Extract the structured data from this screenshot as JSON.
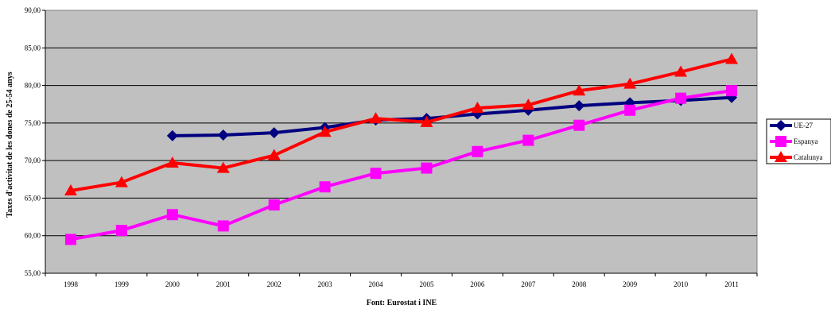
{
  "chart_data": {
    "type": "line",
    "title": "",
    "xlabel": "Font: Eurostat i INE",
    "ylabel": "Taxes d'activitat de les dones de 25-54 anys",
    "categories": [
      "1998",
      "1999",
      "2000",
      "2001",
      "2002",
      "2003",
      "2004",
      "2005",
      "2006",
      "2007",
      "2008",
      "2009",
      "2010",
      "2011"
    ],
    "ylim": [
      55,
      90
    ],
    "yticks": [
      "55,00",
      "60,00",
      "65,00",
      "70,00",
      "75,00",
      "80,00",
      "85,00",
      "90,00"
    ],
    "grid": true,
    "legend": "right",
    "background": "#c0c0c0",
    "series": [
      {
        "name": "UE-27",
        "color": "#000080",
        "marker": "diamond",
        "values": [
          null,
          null,
          73.3,
          73.4,
          73.7,
          74.4,
          75.4,
          75.6,
          76.2,
          76.7,
          77.3,
          77.7,
          78.0,
          78.4
        ]
      },
      {
        "name": "Espanya",
        "color": "#ff00ff",
        "marker": "square",
        "values": [
          59.5,
          60.7,
          62.8,
          61.3,
          64.1,
          66.5,
          68.3,
          69.0,
          71.2,
          72.7,
          74.7,
          76.7,
          78.3,
          79.3
        ]
      },
      {
        "name": "Catalunya",
        "color": "#ff0000",
        "marker": "triangle",
        "values": [
          66.0,
          67.1,
          69.7,
          69.0,
          70.7,
          73.8,
          75.6,
          75.1,
          77.0,
          77.4,
          79.3,
          80.2,
          81.8,
          83.5
        ]
      }
    ]
  }
}
